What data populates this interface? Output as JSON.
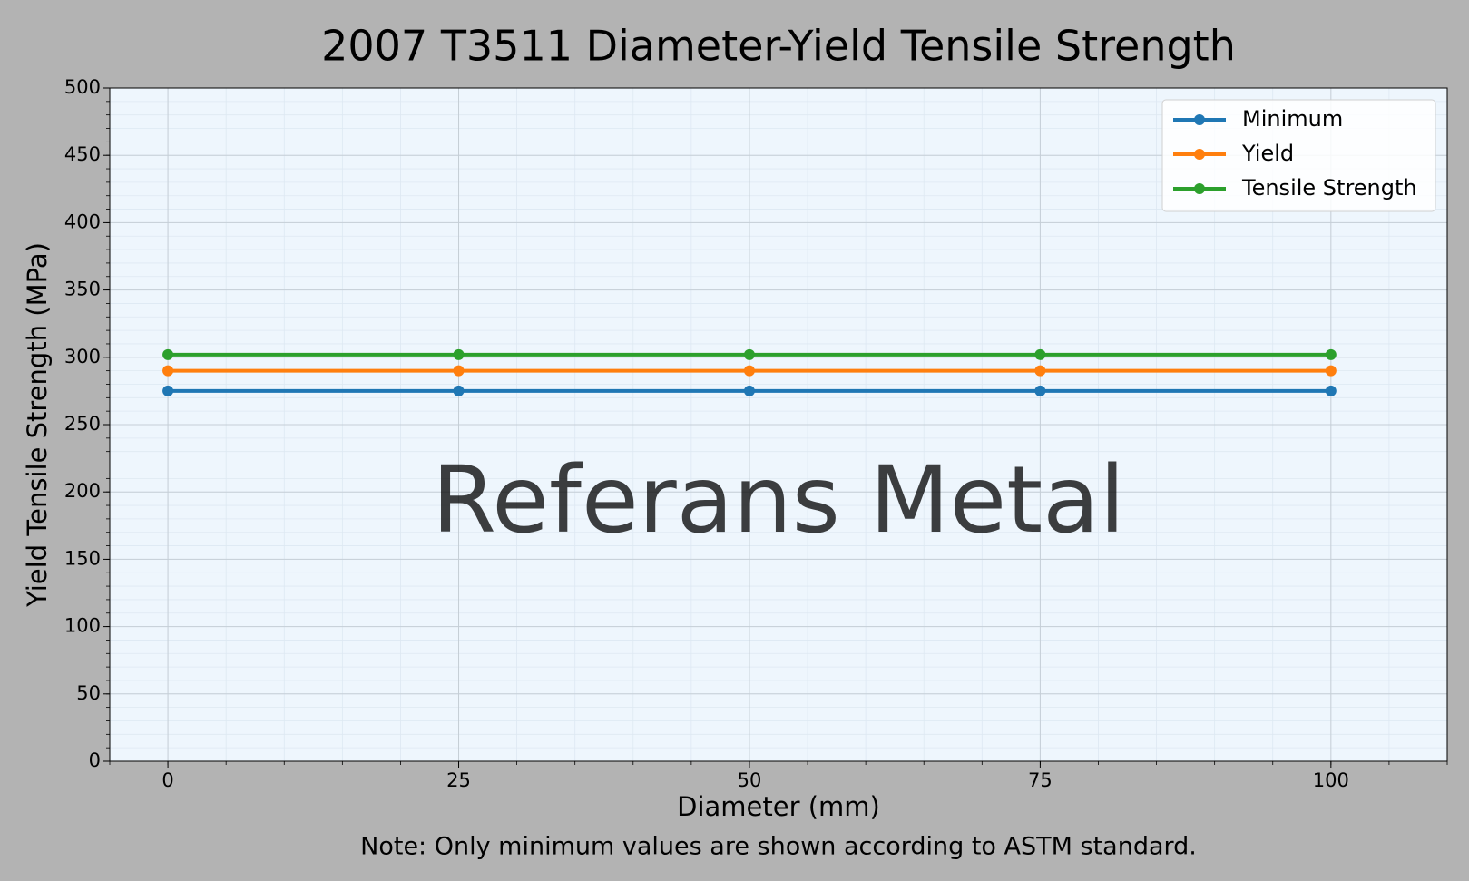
{
  "chart_data": {
    "type": "line",
    "title": "2007 T3511 Diameter-Yield Tensile Strength",
    "x_label": "Diameter (mm)",
    "y_label": "Yield Tensile Strength (MPa)",
    "note": "Note: Only minimum values are shown according to ASTM standard.",
    "watermark": "Referans Metal",
    "x": [
      0,
      25,
      50,
      75,
      100
    ],
    "series": [
      {
        "name": "Minimum",
        "color": "#1f77b4",
        "values": [
          275,
          275,
          275,
          275,
          275
        ]
      },
      {
        "name": "Yield",
        "color": "#ff7f0e",
        "values": [
          290,
          290,
          290,
          290,
          290
        ]
      },
      {
        "name": "Tensile Strength",
        "color": "#2ca02c",
        "values": [
          302,
          302,
          302,
          302,
          302
        ]
      }
    ],
    "xlim": [
      -5,
      110
    ],
    "ylim": [
      0,
      500
    ],
    "xticks": [
      0,
      25,
      50,
      75,
      100
    ],
    "yticks": [
      0,
      50,
      100,
      150,
      200,
      250,
      300,
      350,
      400,
      450,
      500
    ],
    "grid": true,
    "minor_grid": {
      "x": 5,
      "y": 10
    },
    "legend": "upper right"
  }
}
